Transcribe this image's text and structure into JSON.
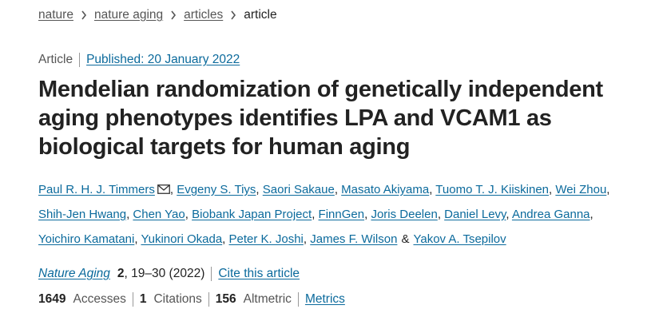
{
  "breadcrumb": [
    "nature",
    "nature aging",
    "articles",
    "article"
  ],
  "article_type": "Article",
  "published": "Published: 20 January 2022",
  "title": "Mendelian randomization of genetically independent aging phenotypes identifies LPA and VCAM1 as biological targets for human aging",
  "authors_block": {
    "authors": [
      "Paul R. H. J. Timmers",
      "Evgeny S. Tiys",
      "Saori Sakaue",
      "Masato Akiyama",
      "Tuomo T. J. Kiiskinen",
      "Wei Zhou",
      "Shih-Jen Hwang",
      "Chen Yao",
      "Biobank Japan Project",
      "FinnGen",
      "Joris Deelen",
      "Daniel Levy",
      "Andrea Ganna",
      "Yoichiro Kamatani",
      "Yukinori Okada",
      "Peter K. Joshi",
      "James F. Wilson",
      "Yakov A. Tsepilov"
    ],
    "separator": ",",
    "final_separator": "&"
  },
  "citation": {
    "journal": "Nature Aging",
    "volume": 2,
    "pages": ", 19–30 (2022)",
    "cite_link": "Cite this article"
  },
  "metrics": [
    {
      "value": 1649,
      "label": "Accesses"
    },
    {
      "value": 1,
      "label": "Citations"
    },
    {
      "value": 156,
      "label": "Altmetric"
    }
  ],
  "metrics_link": "Metrics"
}
